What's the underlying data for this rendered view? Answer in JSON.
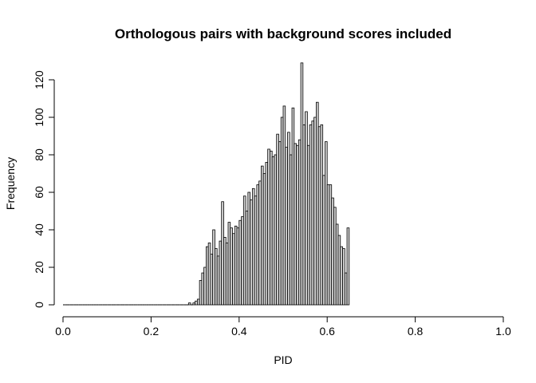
{
  "chart_data": {
    "type": "bar",
    "title": "Orthologous pairs with background scores included",
    "xlabel": "PID",
    "ylabel": "Frequency",
    "xlim": [
      0,
      1
    ],
    "ylim": [
      0,
      128
    ],
    "bin_width": 0.005,
    "x_ticks": [
      "0.0",
      "0.2",
      "0.4",
      "0.6",
      "0.8",
      "1.0"
    ],
    "y_ticks": [
      "0",
      "20",
      "40",
      "60",
      "80",
      "100",
      "120"
    ],
    "grid": false,
    "legend": "none",
    "bar_color": "#d3d3d3",
    "edge_color": "#000000",
    "bins_start": 0.285,
    "values": [
      1,
      0,
      1,
      2,
      3,
      13,
      17,
      20,
      31,
      33,
      27,
      40,
      30,
      26,
      34,
      55,
      36,
      33,
      44,
      41,
      38,
      42,
      41,
      45,
      47,
      58,
      50,
      60,
      56,
      62,
      58,
      64,
      66,
      74,
      70,
      76,
      83,
      82,
      79,
      80,
      91,
      87,
      100,
      106,
      84,
      92,
      80,
      105,
      86,
      85,
      88,
      129,
      96,
      103,
      85,
      96,
      98,
      100,
      108,
      95,
      96,
      69,
      87,
      64,
      64,
      57,
      52,
      43,
      37,
      31,
      30,
      17,
      41
    ]
  }
}
